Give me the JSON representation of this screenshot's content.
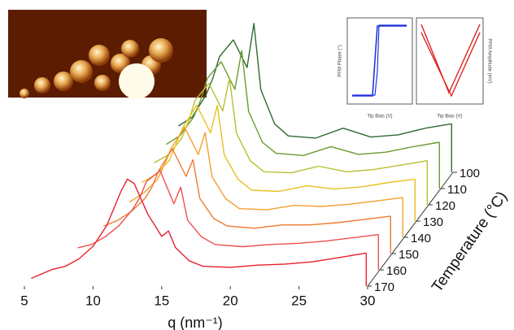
{
  "chart_data": {
    "type": "waterfall",
    "xlabel": "q (nm⁻¹)",
    "zlabel": "Temperature (°C)",
    "xlim": [
      5,
      30
    ],
    "xticks": [
      5,
      10,
      15,
      20,
      25,
      30
    ],
    "ylim": [
      0,
      14
    ],
    "zlim": [
      170,
      100
    ],
    "zticks": [
      170,
      160,
      150,
      140,
      130,
      120,
      110,
      100
    ],
    "x": [
      5.5,
      7,
      8,
      9,
      10,
      11,
      12,
      12.5,
      13,
      14,
      15,
      15.5,
      16,
      17,
      18,
      20,
      22,
      24,
      26,
      28,
      29.9
    ],
    "series": [
      {
        "z": 170,
        "color": "#e8202a",
        "values": [
          0.7,
          1.5,
          1.8,
          2.5,
          3.6,
          5.5,
          8.5,
          9.7,
          9.3,
          6.5,
          4.5,
          5.0,
          3.5,
          2.3,
          1.8,
          1.7,
          1.9,
          2.0,
          2.2,
          2.6,
          3.0
        ]
      },
      {
        "z": 160,
        "color": "#f0504a",
        "values": [
          null,
          null,
          2.0,
          2.3,
          3.0,
          4.0,
          5.5,
          6.5,
          8.0,
          9.0,
          6.0,
          7.5,
          4.5,
          3.0,
          2.3,
          2.1,
          2.3,
          2.4,
          2.6,
          2.9,
          3.2
        ]
      },
      {
        "z": 150,
        "color": "#f07a30",
        "values": [
          null,
          null,
          null,
          2.5,
          3.0,
          3.8,
          5.0,
          6.0,
          7.5,
          9.5,
          7.0,
          8.5,
          5.0,
          3.2,
          2.5,
          2.3,
          2.6,
          2.6,
          2.8,
          3.1,
          3.4
        ]
      },
      {
        "z": 140,
        "color": "#f5a030",
        "values": [
          null,
          null,
          null,
          null,
          3.2,
          4.0,
          5.2,
          6.5,
          8.0,
          10.0,
          7.5,
          9.5,
          5.5,
          3.5,
          2.6,
          2.5,
          2.9,
          2.8,
          3.0,
          3.3,
          3.6
        ]
      },
      {
        "z": 130,
        "color": "#e8c020",
        "values": [
          null,
          null,
          null,
          null,
          3.5,
          4.2,
          5.5,
          7.0,
          8.5,
          10.5,
          8.0,
          10.5,
          6.0,
          3.8,
          2.8,
          2.7,
          3.2,
          2.9,
          3.1,
          3.5,
          3.8
        ]
      },
      {
        "z": 120,
        "color": "#b8c030",
        "values": [
          null,
          null,
          null,
          null,
          3.8,
          4.5,
          6.0,
          7.5,
          9.5,
          11.0,
          8.5,
          11.5,
          6.5,
          4.0,
          3.0,
          2.9,
          3.5,
          3.0,
          3.2,
          3.6,
          4.0
        ]
      },
      {
        "z": 110,
        "color": "#6a9a30",
        "values": [
          null,
          null,
          null,
          null,
          4.0,
          4.8,
          6.5,
          8.0,
          10.0,
          11.5,
          9.0,
          12.5,
          7.0,
          4.2,
          3.2,
          3.0,
          3.8,
          3.1,
          3.3,
          3.8,
          4.2
        ]
      },
      {
        "z": 100,
        "color": "#2e6a30",
        "values": [
          null,
          null,
          null,
          null,
          4.2,
          5.0,
          7.0,
          8.5,
          10.5,
          12.0,
          9.5,
          13.5,
          7.5,
          4.4,
          3.3,
          3.1,
          4.0,
          3.2,
          3.4,
          4.0,
          4.4
        ]
      }
    ]
  },
  "insets": {
    "phase": {
      "ylabel": "PFM Phase (°)",
      "xlabel": "Tip Bias (V)"
    },
    "amplitude": {
      "ylabel": "PFM Amplitude (mV)",
      "xlabel": "Tip Bias (V)"
    }
  }
}
